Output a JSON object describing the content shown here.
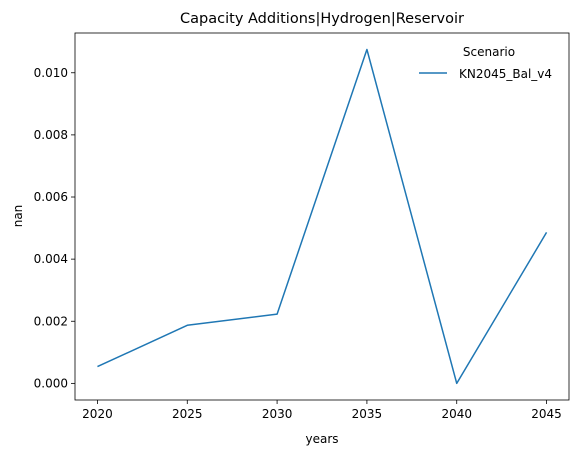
{
  "chart_data": {
    "type": "line",
    "title": "Capacity Additions|Hydrogen|Reservoir",
    "xlabel": "years",
    "ylabel": "nan",
    "x": [
      2020,
      2025,
      2030,
      2035,
      2040,
      2045
    ],
    "xticks": [
      "2020",
      "2025",
      "2030",
      "2035",
      "2040",
      "2045"
    ],
    "yticks": [
      "0.000",
      "0.002",
      "0.004",
      "0.006",
      "0.008",
      "0.010"
    ],
    "ylim": [
      -0.000535,
      0.01128
    ],
    "xlim": [
      2018.75,
      2046.25
    ],
    "grid": false,
    "legend": {
      "title": "Scenario",
      "placement": "top-right"
    },
    "series": [
      {
        "name": "KN2045_Bal_v4",
        "color": "#1f77b4",
        "values": [
          0.00054,
          0.00187,
          0.00223,
          0.01075,
          0.0,
          0.00486
        ]
      }
    ]
  }
}
